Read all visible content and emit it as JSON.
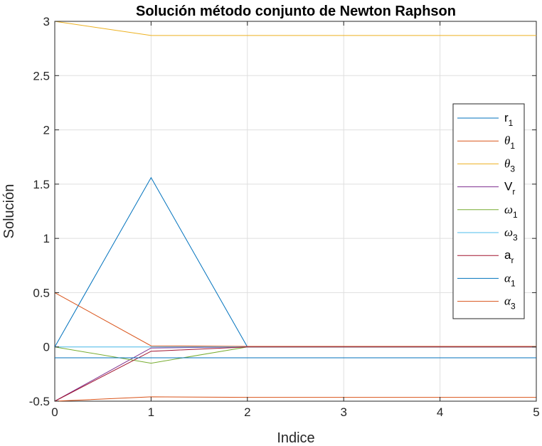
{
  "chart_data": {
    "type": "line",
    "title": "Solución método conjunto de Newton Raphson",
    "xlabel": "Indice",
    "ylabel": "Solución",
    "xlim": [
      0,
      5
    ],
    "ylim": [
      -0.5,
      3
    ],
    "xticks": [
      0,
      1,
      2,
      3,
      4,
      5
    ],
    "yticks": [
      -0.5,
      0,
      0.5,
      1,
      1.5,
      2,
      2.5,
      3
    ],
    "xtick_labels": [
      "0",
      "1",
      "2",
      "3",
      "4",
      "5"
    ],
    "ytick_labels": [
      "-0.5",
      "0",
      "0.5",
      "1",
      "1.5",
      "2",
      "2.5",
      "3"
    ],
    "grid": true,
    "legend_position": "right",
    "x": [
      0,
      1,
      2,
      3,
      4,
      5
    ],
    "series": [
      {
        "name": "r",
        "sub": "1",
        "greek": false,
        "color": "#0072BD",
        "values": [
          0.0,
          1.56,
          0.0,
          0.0,
          0.0,
          0.0
        ]
      },
      {
        "name": "θ",
        "sub": "1",
        "greek": true,
        "color": "#D95319",
        "values": [
          0.5,
          0.01,
          0.005,
          0.005,
          0.005,
          0.005
        ]
      },
      {
        "name": "θ",
        "sub": "3",
        "greek": true,
        "color": "#EDB120",
        "values": [
          3.0,
          2.87,
          2.87,
          2.87,
          2.87,
          2.87
        ]
      },
      {
        "name": "V",
        "sub": "r",
        "greek": false,
        "color": "#7E2F8E",
        "values": [
          -0.5,
          -0.01,
          0.0,
          0.0,
          0.0,
          0.0
        ]
      },
      {
        "name": "ω",
        "sub": "1",
        "greek": true,
        "color": "#77AC30",
        "values": [
          0.0,
          -0.15,
          0.0,
          0.0,
          0.0,
          0.0
        ]
      },
      {
        "name": "ω",
        "sub": "3",
        "greek": true,
        "color": "#4DBEEE",
        "values": [
          0.0,
          0.0,
          0.0,
          0.0,
          0.0,
          0.0
        ]
      },
      {
        "name": "a",
        "sub": "r",
        "greek": false,
        "color": "#A2142F",
        "values": [
          -0.5,
          -0.04,
          0.0,
          0.0,
          0.0,
          0.0
        ]
      },
      {
        "name": "α",
        "sub": "1",
        "greek": true,
        "color": "#0072BD",
        "values": [
          -0.1,
          -0.1,
          -0.1,
          -0.1,
          -0.1,
          -0.1
        ]
      },
      {
        "name": "α",
        "sub": "3",
        "greek": true,
        "color": "#D95319",
        "values": [
          -0.5,
          -0.46,
          -0.465,
          -0.465,
          -0.465,
          -0.465
        ]
      }
    ]
  }
}
